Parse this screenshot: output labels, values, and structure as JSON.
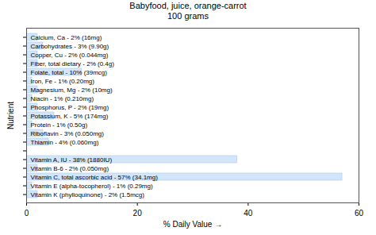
{
  "chart_data": {
    "type": "bar",
    "orientation": "horizontal",
    "title": "Babyfood, juice, orange-carrot",
    "subtitle": "100 grams",
    "x_label": "% Daily Value",
    "y_label": "Nutrient",
    "categories": [
      "Calcium, Ca - 2% (16mg)",
      "Carbohydrates - 3% (9.90g)",
      "Copper, Cu - 2% (0.044mg)",
      "Fiber, total dietary - 2% (0.4g)",
      "Folate, total - 10% (39mcg)",
      "Iron, Fe - 1% (0.20mg)",
      "Magnesium, Mg - 2% (10mg)",
      "Niacin - 1% (0.210mg)",
      "Phosphorus, P - 2% (19mg)",
      "Potassium, K - 5% (174mg)",
      "Protein - 1% (0.50g)",
      "Riboflavin - 3% (0.050mg)",
      "Thiamin - 4% (0.060mg)",
      null,
      "Vitamin A, IU - 38% (1880IU)",
      "Vitamin B-6 - 2% (0.050mg)",
      "Vitamin C, total ascorbic acid - 57% (34.1mg)",
      "Vitamin E (alpha-tocopherol) - 1% (0.29mg)",
      "Vitamin K (phylloquinone) - 2% (1.5mcg)"
    ],
    "values": [
      2,
      3,
      2,
      2,
      10,
      1,
      2,
      1,
      2,
      5,
      1,
      3,
      4,
      null,
      38,
      2,
      57,
      1,
      2
    ],
    "color": "#d3e5f8",
    "xlim": [
      0,
      60
    ],
    "xticks": [
      0,
      20,
      40,
      60
    ],
    "grid": false,
    "tick_labels": "x"
  }
}
